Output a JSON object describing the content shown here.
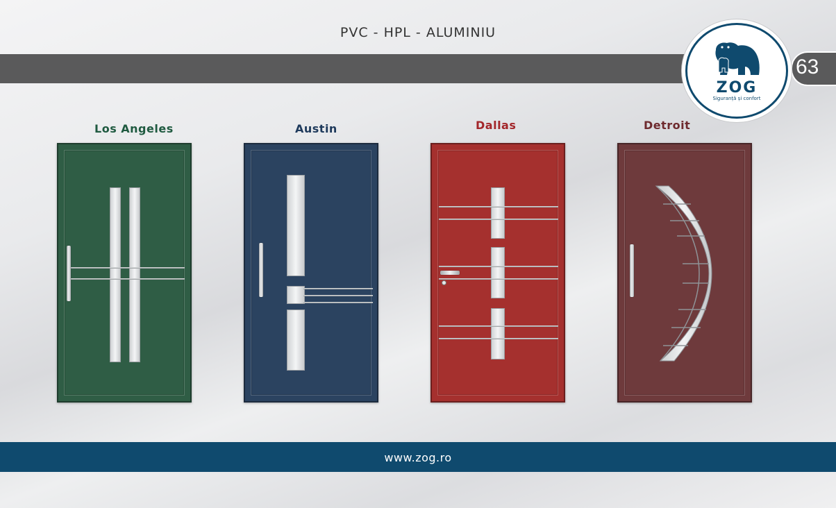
{
  "header": {
    "title": "PVC - HPL - ALUMINIU"
  },
  "page_number": "63",
  "logo": {
    "name": "ZOG",
    "tagline": "Siguranță și confort"
  },
  "doors": [
    {
      "name": "Los Angeles",
      "label_color": "#1f5a40",
      "panel_color": "#2f5d45"
    },
    {
      "name": "Austin",
      "label_color": "#1f3a5c",
      "panel_color": "#2b4360"
    },
    {
      "name": "Dallas",
      "label_color": "#a3262a",
      "panel_color": "#a5302e"
    },
    {
      "name": "Detroit",
      "label_color": "#6e2a2e",
      "panel_color": "#6e3a3c"
    }
  ],
  "footer": {
    "url": "www.zog.ro"
  },
  "colors": {
    "accent": "#0f4a6e",
    "bar_gray": "#5a5a5b"
  }
}
